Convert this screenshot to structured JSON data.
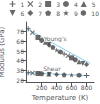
{
  "chart_data": {
    "type": "scatter",
    "xlabel": "Temperature (K)",
    "ylabel": "Modulus (GPa)",
    "xlim": [
      -10,
      900
    ],
    "ylim": [
      18,
      80
    ],
    "xticks": [
      200,
      400,
      600,
      800
    ],
    "yticks": [
      20,
      30,
      40,
      50,
      60,
      70
    ],
    "grid": false,
    "legend": "upper right",
    "series": [
      {
        "type": "line",
        "color": "#87ceeb",
        "x": [
          0,
          850
        ],
        "values": [
          73,
          37
        ]
      },
      {
        "type": "line",
        "color": "#87ceeb",
        "x": [
          0,
          850
        ],
        "values": [
          27.5,
          24.5
        ]
      },
      {
        "type": "scatter",
        "name": "1",
        "marker": "plus",
        "color": "#444444",
        "x": [
          20,
          500,
          20,
          800
        ],
        "values": [
          73,
          47,
          27.5,
          24.7
        ]
      },
      {
        "type": "scatter",
        "name": "2",
        "marker": "x",
        "color": "#444444",
        "x": [
          77,
          550,
          77
        ],
        "values": [
          69,
          45,
          27.2
        ]
      },
      {
        "type": "scatter",
        "name": "3",
        "marker": "square",
        "color": "#444444",
        "x": [
          150,
          600,
          150
        ],
        "values": [
          64,
          43,
          26.8
        ]
      },
      {
        "type": "scatter",
        "name": "4",
        "marker": "circle",
        "color": "#444444",
        "x": [
          200,
          650,
          200
        ],
        "values": [
          61,
          41,
          26.5
        ]
      },
      {
        "type": "scatter",
        "name": "5",
        "marker": "triangle-up",
        "color": "#444444",
        "x": [
          250,
          700,
          295
        ],
        "values": [
          59,
          39,
          26.2
        ]
      },
      {
        "type": "scatter",
        "name": "6",
        "marker": "triangle-down",
        "color": "#444444",
        "x": [
          295,
          750,
          300
        ],
        "values": [
          57,
          37,
          26.0
        ]
      },
      {
        "type": "scatter",
        "name": "7",
        "marker": "diamond",
        "color": "#444444",
        "x": [
          300,
          800,
          400
        ],
        "values": [
          56,
          36,
          25.8
        ]
      },
      {
        "type": "scatter",
        "name": "8",
        "marker": "pentagon",
        "color": "#444444",
        "x": [
          350,
          500
        ],
        "values": [
          54,
          25.5
        ]
      },
      {
        "type": "scatter",
        "name": "9",
        "marker": "star",
        "color": "#444444",
        "x": [
          400,
          600
        ],
        "values": [
          51,
          25.2
        ]
      },
      {
        "type": "scatter",
        "name": "10",
        "marker": "hexagon",
        "color": "#444444",
        "x": [
          450,
          700
        ],
        "values": [
          49,
          25.0
        ]
      }
    ],
    "annotations": [
      {
        "text": "Young's",
        "x": 230,
        "y": 59.5
      },
      {
        "text": "Shear",
        "x": 220,
        "y": 28.5
      }
    ]
  }
}
